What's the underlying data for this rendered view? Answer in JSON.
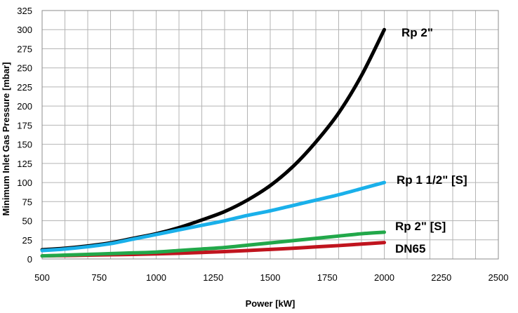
{
  "chart_data": {
    "type": "line",
    "title": "",
    "xlabel": "Power [kW]",
    "ylabel": "Minimum Inlet Gas Pressure [mbar]",
    "xlim": [
      500,
      2500
    ],
    "ylim": [
      0,
      325
    ],
    "xticks": [
      500,
      750,
      1000,
      1250,
      1500,
      1750,
      2000,
      2250,
      2500
    ],
    "yticks": [
      0,
      25,
      50,
      75,
      100,
      125,
      150,
      175,
      200,
      225,
      250,
      275,
      300,
      325
    ],
    "x_minor_step": 100,
    "grid": true,
    "series": [
      {
        "name": "Rp 2\"",
        "color": "#000000",
        "x": [
          500,
          600,
          700,
          800,
          900,
          1000,
          1100,
          1200,
          1300,
          1400,
          1500,
          1600,
          1700,
          1800,
          1900,
          2000
        ],
        "values": [
          12,
          14,
          17,
          21,
          27,
          33,
          41,
          51,
          62,
          77,
          96,
          121,
          153,
          191,
          240,
          300
        ]
      },
      {
        "name": "Rp 1 1/2\" [S]",
        "color": "#1ab0ea",
        "x": [
          500,
          600,
          700,
          800,
          900,
          1000,
          1100,
          1200,
          1300,
          1400,
          1500,
          1600,
          1700,
          1800,
          1900,
          2000
        ],
        "values": [
          11,
          13,
          16,
          20,
          26,
          32,
          38,
          44,
          50,
          57,
          63,
          70,
          77,
          84,
          92,
          100
        ]
      },
      {
        "name": "Rp  2\" [S]",
        "color": "#22a84a",
        "x": [
          500,
          600,
          700,
          800,
          900,
          1000,
          1100,
          1200,
          1300,
          1400,
          1500,
          1600,
          1700,
          1800,
          1900,
          2000
        ],
        "values": [
          4,
          5,
          6,
          7,
          8,
          9,
          11,
          13,
          15,
          18,
          21,
          24,
          27,
          30,
          33,
          35
        ]
      },
      {
        "name": "DN65",
        "color": "#c0141e",
        "x": [
          500,
          600,
          700,
          800,
          900,
          1000,
          1100,
          1200,
          1300,
          1400,
          1500,
          1600,
          1700,
          1800,
          1900,
          2000
        ],
        "values": [
          4,
          4.5,
          5,
          5.5,
          6,
          6.7,
          7.5,
          8.5,
          9.6,
          11,
          12.5,
          14,
          15.8,
          17.5,
          19.5,
          21.5
        ]
      }
    ]
  }
}
